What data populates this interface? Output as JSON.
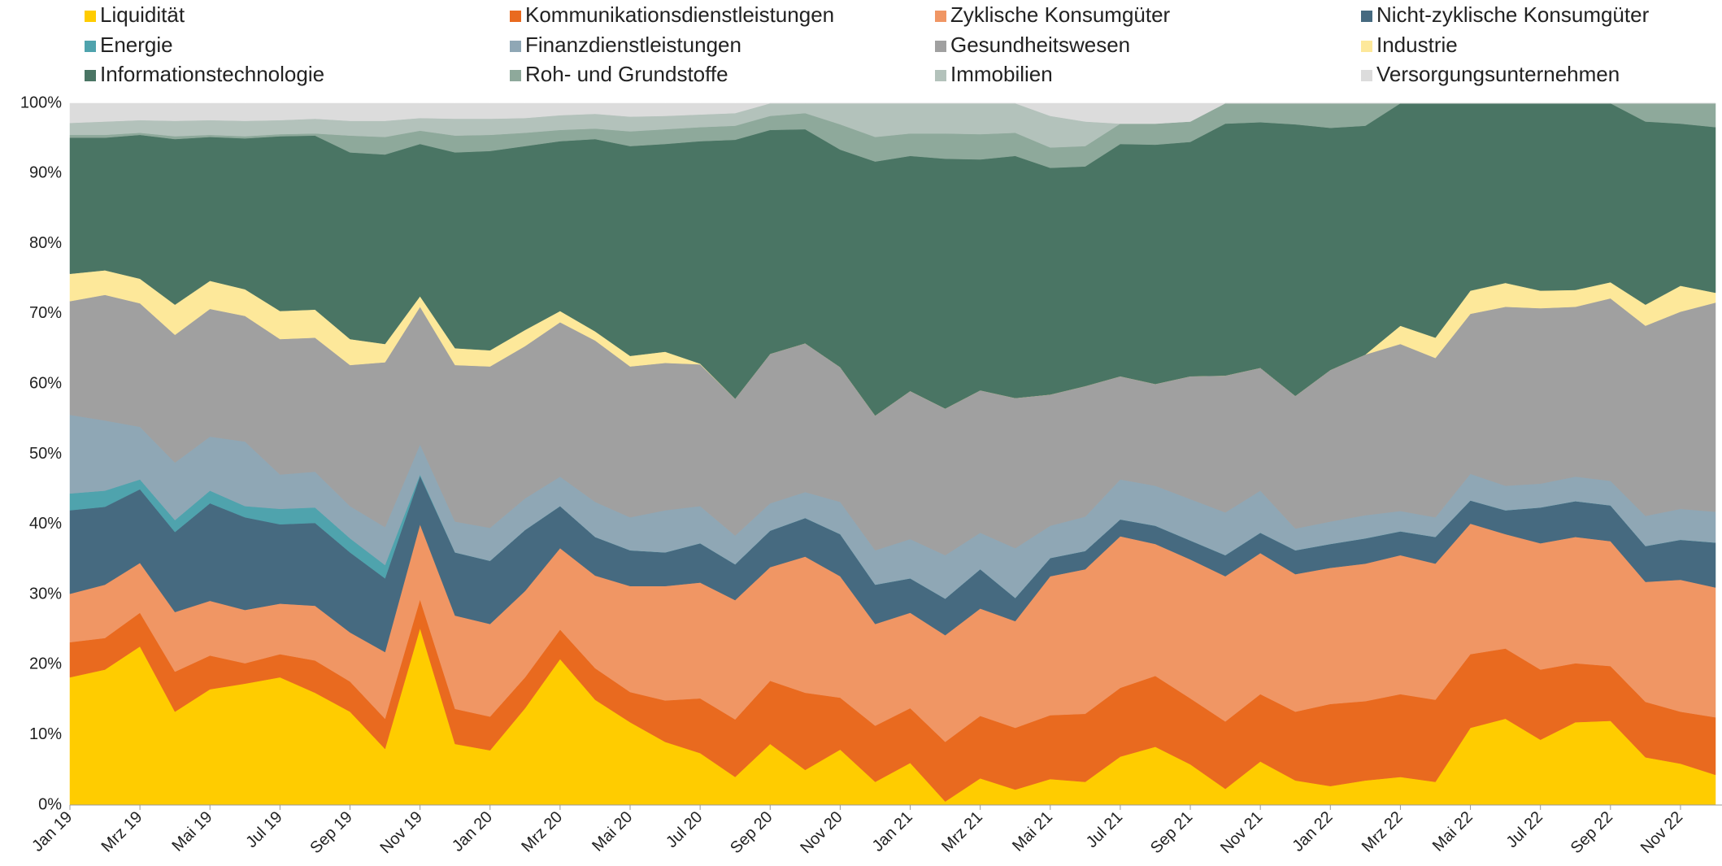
{
  "chart_data": {
    "type": "stacked_area",
    "categories": [
      "Jan 19",
      null,
      "Mrz 19",
      null,
      "Mai 19",
      null,
      "Jul 19",
      null,
      "Sep 19",
      null,
      "Nov 19",
      null,
      "Jan 20",
      null,
      "Mrz 20",
      null,
      "Mai 20",
      null,
      "Jul 20",
      null,
      "Sep 20",
      null,
      "Nov 20",
      null,
      "Jan 21",
      null,
      "Mrz 21",
      null,
      "Mai 21",
      null,
      "Jul 21",
      null,
      "Sep 21",
      null,
      "Nov 21",
      null,
      "Jan 22",
      null,
      "Mrz 22",
      null,
      "Mai 22",
      null,
      "Jul 22",
      null,
      "Sep 22",
      null,
      "Nov 22",
      null
    ],
    "ylim": [
      0,
      100
    ],
    "yticks": [
      {
        "value": 0,
        "label": "0%"
      },
      {
        "value": 10,
        "label": "10%"
      },
      {
        "value": 20,
        "label": "20%"
      },
      {
        "value": 30,
        "label": "30%"
      },
      {
        "value": 40,
        "label": "40%"
      },
      {
        "value": 50,
        "label": "50%"
      },
      {
        "value": 60,
        "label": "60%"
      },
      {
        "value": 70,
        "label": "70%"
      },
      {
        "value": 80,
        "label": "80%"
      },
      {
        "value": 90,
        "label": "90%"
      },
      {
        "value": 100,
        "label": "100%"
      }
    ],
    "legend_position": "top",
    "series": [
      {
        "name": "Liquidität",
        "color": "#ffcc00",
        "values": [
          18.2,
          19.3,
          22.6,
          13.3,
          16.5,
          17.3,
          18.2,
          16.0,
          13.3,
          8.0,
          25.2,
          8.7,
          7.8,
          13.8,
          20.8,
          15.0,
          11.8,
          9.0,
          7.4,
          4.0,
          8.7,
          5.0,
          7.9,
          3.3,
          6.0,
          0.5,
          3.8,
          2.2,
          3.7,
          3.3,
          6.9,
          8.3,
          5.8,
          2.3,
          6.2,
          3.5,
          2.7,
          3.5,
          4.0,
          3.3,
          11.0,
          12.3,
          9.3,
          11.8,
          12.0,
          6.8,
          5.9,
          4.3
        ]
      },
      {
        "name": "Kommunikationsdienstleistungen",
        "color": "#e96a1f",
        "values": [
          5.0,
          4.5,
          4.8,
          5.7,
          4.8,
          2.9,
          3.3,
          4.6,
          4.3,
          4.3,
          4.1,
          5.0,
          4.8,
          4.4,
          4.2,
          4.5,
          4.3,
          5.9,
          7.8,
          8.2,
          9.0,
          11.0,
          7.4,
          8.0,
          7.8,
          8.5,
          8.9,
          8.8,
          9.1,
          9.7,
          9.8,
          10.1,
          9.4,
          9.6,
          9.6,
          9.8,
          11.7,
          11.3,
          11.8,
          11.7,
          10.5,
          10.0,
          10.0,
          8.4,
          7.8,
          7.9,
          7.4,
          8.2
        ]
      },
      {
        "name": "Zyklische Konsumgüter",
        "color": "#f09664",
        "values": [
          6.9,
          7.6,
          7.1,
          8.5,
          7.8,
          7.6,
          7.2,
          7.8,
          7.0,
          9.5,
          10.7,
          13.3,
          13.2,
          12.3,
          11.6,
          13.2,
          15.1,
          16.3,
          16.5,
          17.0,
          16.2,
          19.4,
          17.3,
          14.5,
          13.6,
          15.2,
          15.3,
          15.2,
          19.8,
          20.6,
          21.6,
          18.8,
          19.8,
          20.7,
          20.1,
          19.6,
          19.4,
          19.6,
          19.8,
          19.4,
          18.6,
          16.3,
          18.0,
          18.0,
          17.8,
          17.1,
          18.8,
          18.5
        ]
      },
      {
        "name": "Nicht-zyklische Konsumgüter",
        "color": "#466a80",
        "values": [
          11.9,
          11.1,
          10.5,
          11.4,
          13.9,
          13.2,
          11.3,
          11.8,
          11.4,
          10.5,
          6.9,
          9.0,
          9.0,
          8.7,
          6.0,
          5.5,
          5.1,
          4.8,
          5.6,
          5.1,
          5.2,
          5.5,
          6.0,
          5.6,
          4.9,
          5.2,
          5.6,
          3.3,
          2.6,
          2.6,
          2.4,
          2.6,
          2.7,
          3.0,
          2.9,
          3.4,
          3.4,
          3.6,
          3.4,
          3.8,
          3.3,
          3.4,
          5.1,
          5.1,
          5.1,
          5.1,
          5.7,
          6.4
        ]
      },
      {
        "name": "Energie",
        "color": "#4fa3ad",
        "values": [
          2.4,
          2.3,
          1.4,
          1.7,
          1.8,
          1.6,
          2.2,
          2.2,
          2.0,
          1.9,
          0.2,
          0,
          0,
          0,
          0,
          0,
          0,
          0,
          0,
          0,
          0,
          0,
          0,
          0,
          0,
          0,
          0,
          0,
          0,
          0,
          0,
          0,
          0,
          0,
          0,
          0,
          0,
          0,
          0,
          0,
          0,
          0,
          0,
          0,
          0,
          0,
          0,
          0
        ]
      },
      {
        "name": "Finanzdienstleistungen",
        "color": "#8fa7b5",
        "values": [
          11.2,
          10.0,
          7.5,
          8.2,
          7.7,
          9.2,
          4.9,
          5.1,
          4.6,
          5.4,
          4.3,
          4.4,
          4.7,
          4.5,
          4.2,
          5.0,
          4.7,
          6.0,
          5.3,
          4.1,
          3.9,
          3.7,
          4.6,
          4.9,
          5.6,
          6.2,
          5.2,
          7.1,
          4.6,
          4.9,
          5.7,
          5.7,
          5.9,
          6.1,
          6.0,
          3.1,
          3.2,
          3.3,
          2.9,
          2.8,
          3.8,
          3.5,
          3.4,
          3.5,
          3.5,
          4.3,
          4.4,
          4.4
        ]
      },
      {
        "name": "Gesundheitswesen",
        "color": "#a0a0a0",
        "values": [
          16.2,
          17.9,
          17.6,
          18.2,
          18.2,
          17.9,
          19.3,
          19.1,
          20.1,
          23.5,
          19.6,
          22.3,
          23.0,
          21.7,
          22.0,
          23.0,
          21.5,
          21.0,
          20.2,
          19.5,
          21.3,
          21.2,
          19.2,
          19.2,
          21.1,
          20.9,
          20.3,
          21.4,
          18.7,
          18.6,
          14.7,
          14.5,
          17.5,
          19.5,
          17.5,
          18.9,
          21.6,
          22.9,
          23.8,
          22.7,
          22.8,
          25.5,
          25.0,
          24.2,
          26.0,
          27.1,
          28.1,
          29.8
        ]
      },
      {
        "name": "Industrie",
        "color": "#fde89a",
        "values": [
          3.9,
          3.5,
          3.5,
          4.3,
          4.0,
          3.8,
          4.0,
          4.0,
          3.7,
          2.6,
          1.5,
          2.4,
          2.3,
          2.3,
          1.6,
          1.3,
          1.5,
          1.6,
          0.1,
          0,
          0,
          0,
          0,
          0,
          0,
          0,
          0,
          0,
          0,
          0,
          0,
          0,
          0,
          0,
          0,
          0,
          0,
          0,
          2.6,
          2.9,
          3.3,
          3.4,
          2.5,
          2.4,
          2.3,
          3.0,
          3.7,
          1.4
        ]
      },
      {
        "name": "Informationstechnologie",
        "color": "#4a7564",
        "values": [
          19.4,
          18.9,
          20.5,
          23.6,
          20.5,
          21.5,
          24.9,
          24.8,
          26.6,
          27.0,
          21.7,
          27.9,
          28.4,
          26.2,
          24.2,
          27.4,
          29.9,
          29.6,
          31.7,
          36.9,
          31.9,
          30.5,
          31.0,
          36.2,
          33.5,
          35.6,
          32.9,
          34.5,
          32.3,
          31.3,
          33.1,
          34.1,
          33.4,
          35.9,
          35.0,
          38.7,
          34.5,
          32.6,
          31.7,
          33.4,
          26.7,
          25.6,
          26.7,
          26.6,
          25.5,
          26.1,
          23.1,
          23.6
        ]
      },
      {
        "name": "Roh- und Grundstoffe",
        "color": "#8ea99b",
        "values": [
          0.4,
          0.4,
          0.3,
          0.4,
          0.3,
          0.3,
          0.3,
          0.3,
          2.4,
          2.5,
          1.9,
          2.4,
          2.3,
          1.9,
          1.6,
          1.5,
          2.1,
          2.1,
          2.0,
          2.0,
          2.0,
          2.3,
          3.6,
          3.5,
          3.2,
          3.6,
          3.6,
          3.3,
          2.9,
          2.9,
          2.9,
          3.0,
          2.9,
          2.9,
          2.7,
          3.0,
          3.5,
          3.2,
          0,
          0,
          0,
          0,
          0,
          0,
          0,
          2.6,
          2.9,
          3.4
        ]
      },
      {
        "name": "Immobilien",
        "color": "#b3c2bb",
        "values": [
          1.7,
          1.9,
          1.8,
          2.2,
          2.1,
          2.2,
          2.0,
          2.1,
          2.1,
          2.3,
          1.8,
          2.4,
          2.3,
          2.1,
          2.1,
          2.1,
          2.1,
          1.9,
          1.8,
          1.8,
          1.8,
          1.4,
          3.0,
          4.8,
          4.3,
          4.3,
          4.4,
          4.2,
          4.5,
          3.5,
          0,
          0,
          0,
          0,
          0,
          0,
          0,
          0,
          0,
          0,
          0,
          0,
          0,
          0,
          0,
          0,
          0,
          0
        ]
      },
      {
        "name": "Versorgungsunternehmen",
        "color": "#dcdcdc",
        "values": [
          2.8,
          2.6,
          2.4,
          2.5,
          2.4,
          2.5,
          2.4,
          2.2,
          2.5,
          2.5,
          2.1,
          2.2,
          2.2,
          2.1,
          1.7,
          1.5,
          1.9,
          1.8,
          1.6,
          1.4,
          0,
          0,
          0,
          0,
          0,
          0,
          0,
          0,
          1.8,
          2.6,
          2.9,
          2.9,
          2.6,
          0,
          0,
          0,
          0,
          0,
          0,
          0,
          0,
          0,
          0,
          0,
          0,
          0,
          0,
          0
        ]
      }
    ]
  }
}
